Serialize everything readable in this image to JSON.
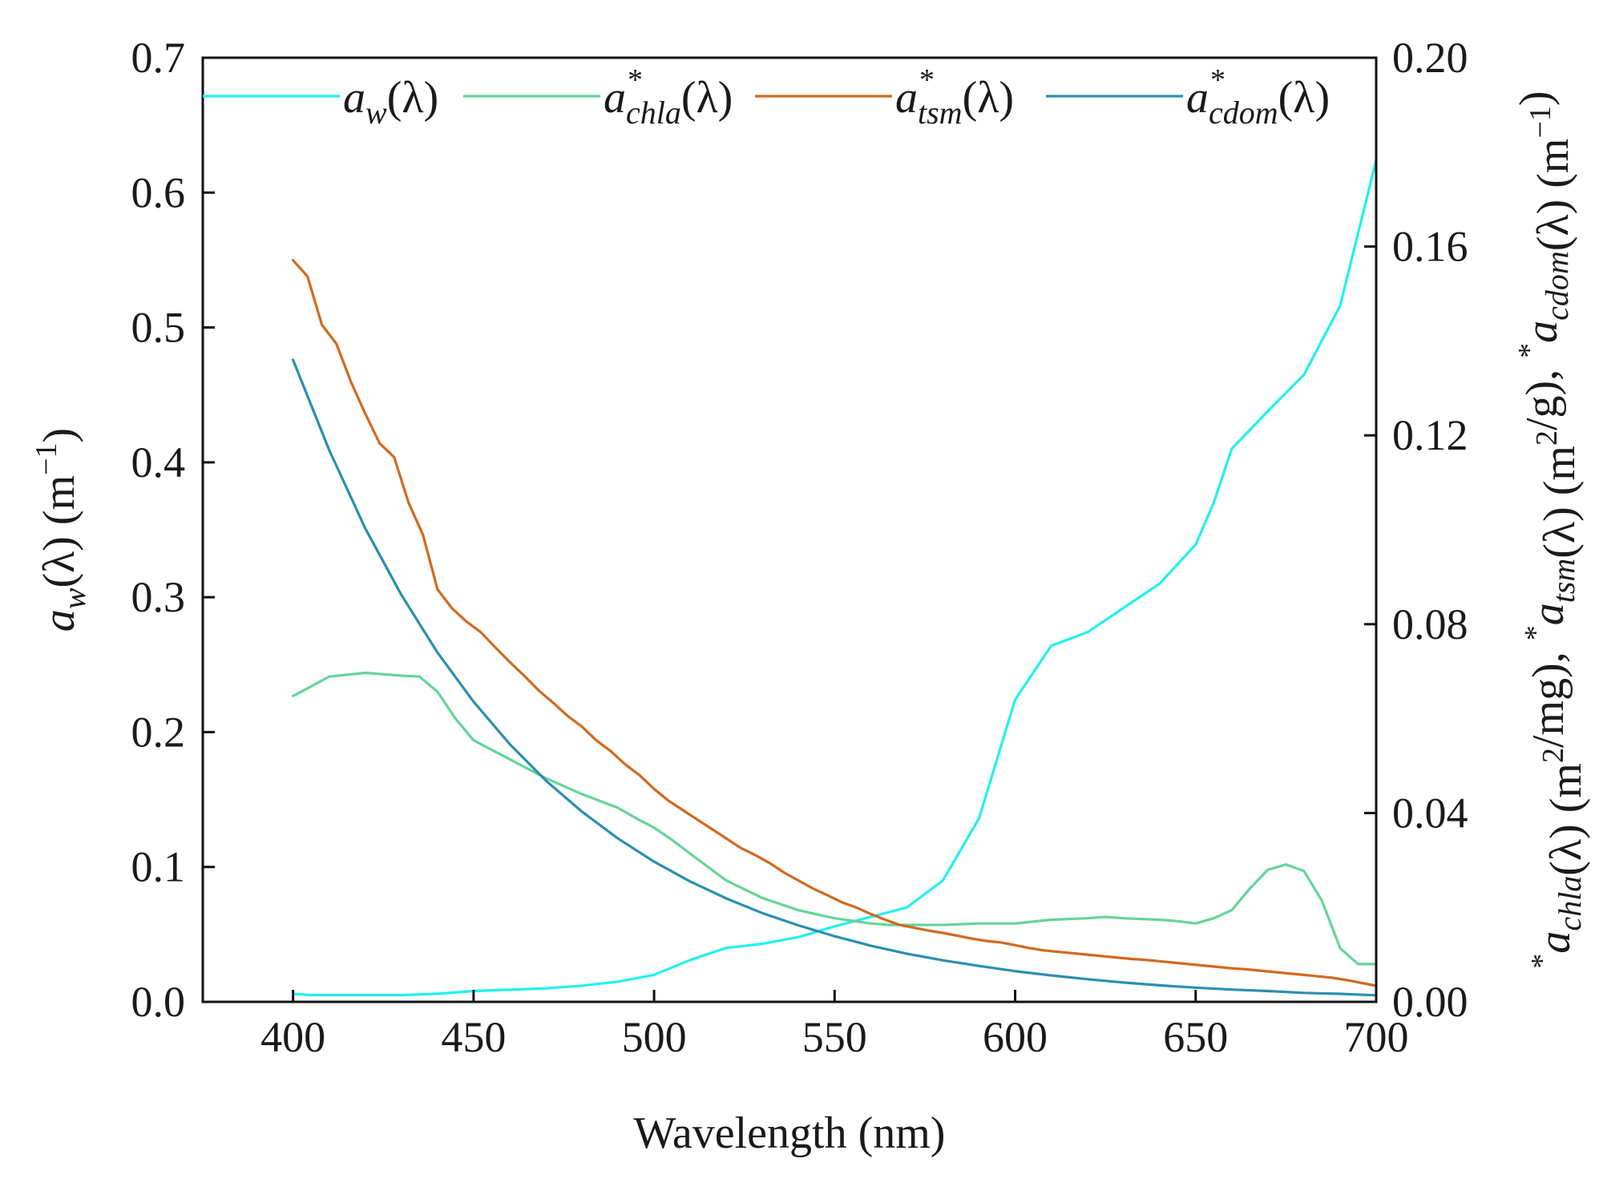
{
  "chart_data": {
    "type": "line",
    "xlabel": "Wavelength (nm)",
    "ylabel_left": {
      "base": "a",
      "sub": "w",
      "rest": "(λ) (m",
      "sup": "−1",
      "end": ")"
    },
    "ylabel_right": [
      {
        "t": "a",
        "sup": "*",
        "sub": "chla"
      },
      {
        "t": "(λ) (m"
      },
      {
        "sup": "2"
      },
      {
        "t": "/mg), "
      },
      {
        "t": "a",
        "sup": "*",
        "sub": "tsm"
      },
      {
        "t": "(λ) (m"
      },
      {
        "sup": "2"
      },
      {
        "t": "/g), "
      },
      {
        "t": "a",
        "sup": "*",
        "sub": "cdom"
      },
      {
        "t": "(λ) (m"
      },
      {
        "sup": "−1"
      },
      {
        "t": ")"
      }
    ],
    "x_range": [
      375,
      700
    ],
    "x_ticks": [
      "400",
      "450",
      "500",
      "550",
      "600",
      "650",
      "700"
    ],
    "y_left_range": [
      0,
      0.7
    ],
    "y_left_ticks": [
      "0.0",
      "0.1",
      "0.2",
      "0.3",
      "0.4",
      "0.5",
      "0.6",
      "0.7"
    ],
    "y_right_range": [
      0,
      0.2
    ],
    "y_right_ticks": [
      "0.00",
      "0.04",
      "0.08",
      "0.12",
      "0.16",
      "0.20"
    ],
    "legend_position": "top",
    "grid": false,
    "series": [
      {
        "id": "aw",
        "label": {
          "base": "a",
          "sub": "w",
          "star": false,
          "rest": "(λ)"
        },
        "axis": "left",
        "color": "#22f0f0",
        "x": [
          400,
          405,
          410,
          420,
          430,
          440,
          445,
          450,
          460,
          470,
          480,
          490,
          500,
          510,
          520,
          530,
          540,
          550,
          560,
          570,
          580,
          590,
          600,
          610,
          620,
          630,
          640,
          650,
          655,
          660,
          670,
          680,
          690,
          700
        ],
        "y": [
          0.006,
          0.005,
          0.005,
          0.005,
          0.005,
          0.006,
          0.007,
          0.008,
          0.009,
          0.01,
          0.012,
          0.015,
          0.02,
          0.031,
          0.04,
          0.043,
          0.048,
          0.056,
          0.063,
          0.07,
          0.09,
          0.136,
          0.224,
          0.264,
          0.274,
          0.292,
          0.31,
          0.339,
          0.37,
          0.41,
          0.438,
          0.465,
          0.516,
          0.624
        ]
      },
      {
        "id": "chla",
        "label": {
          "base": "a",
          "sub": "chla",
          "star": true,
          "rest": "(λ)"
        },
        "axis": "right",
        "color": "#66d49a",
        "x": [
          400,
          403,
          410,
          420,
          430,
          435,
          440,
          445,
          450,
          460,
          470,
          480,
          490,
          495,
          500,
          505,
          510,
          520,
          530,
          540,
          550,
          560,
          565,
          570,
          580,
          590,
          600,
          610,
          620,
          625,
          630,
          640,
          645,
          650,
          655,
          660,
          665,
          670,
          675,
          680,
          685,
          690,
          695,
          700
        ],
        "y": [
          0.0648,
          0.066,
          0.0689,
          0.0697,
          0.0691,
          0.0689,
          0.0657,
          0.06,
          0.0554,
          0.0514,
          0.0474,
          0.044,
          0.0411,
          0.0389,
          0.0369,
          0.0343,
          0.0314,
          0.0257,
          0.022,
          0.0194,
          0.0177,
          0.0166,
          0.0163,
          0.0163,
          0.0163,
          0.0166,
          0.0166,
          0.0174,
          0.0177,
          0.018,
          0.0177,
          0.0174,
          0.0171,
          0.0166,
          0.0177,
          0.0194,
          0.024,
          0.028,
          0.0291,
          0.0277,
          0.0214,
          0.0114,
          0.008,
          0.008
        ]
      },
      {
        "id": "tsm",
        "label": {
          "base": "a",
          "sub": "tsm",
          "star": true,
          "rest": "(λ)"
        },
        "axis": "right",
        "color": "#d2691e",
        "x": [
          400,
          404,
          408,
          412,
          416,
          420,
          424,
          428,
          432,
          436,
          440,
          444,
          448,
          452,
          456,
          460,
          464,
          468,
          472,
          476,
          480,
          484,
          488,
          492,
          496,
          500,
          504,
          508,
          512,
          516,
          520,
          524,
          528,
          532,
          536,
          540,
          544,
          548,
          552,
          556,
          560,
          564,
          568,
          572,
          576,
          580,
          584,
          588,
          592,
          596,
          600,
          604,
          608,
          612,
          616,
          620,
          624,
          628,
          632,
          636,
          640,
          644,
          648,
          652,
          656,
          660,
          664,
          668,
          672,
          676,
          680,
          684,
          688,
          692,
          696,
          700
        ],
        "y": [
          0.1571,
          0.1537,
          0.1434,
          0.1394,
          0.1314,
          0.1246,
          0.1183,
          0.1154,
          0.1057,
          0.0989,
          0.0874,
          0.0834,
          0.0806,
          0.0783,
          0.0751,
          0.072,
          0.0691,
          0.066,
          0.0634,
          0.0606,
          0.0583,
          0.0554,
          0.0531,
          0.0503,
          0.048,
          0.0451,
          0.0426,
          0.0406,
          0.0386,
          0.0366,
          0.0346,
          0.0326,
          0.0311,
          0.0294,
          0.0274,
          0.0257,
          0.024,
          0.0226,
          0.0211,
          0.02,
          0.0186,
          0.0174,
          0.0163,
          0.0157,
          0.0151,
          0.0146,
          0.014,
          0.0134,
          0.0129,
          0.0126,
          0.012,
          0.0114,
          0.0109,
          0.0106,
          0.0103,
          0.01,
          0.0097,
          0.0094,
          0.0091,
          0.0089,
          0.0086,
          0.0083,
          0.008,
          0.0077,
          0.0074,
          0.0071,
          0.0069,
          0.0066,
          0.0063,
          0.006,
          0.0057,
          0.0054,
          0.0051,
          0.0046,
          0.004,
          0.0034
        ]
      },
      {
        "id": "cdom",
        "label": {
          "base": "a",
          "sub": "cdom",
          "star": true,
          "rest": "(λ)"
        },
        "axis": "right",
        "color": "#2a8fb0",
        "x": [
          400,
          410,
          420,
          430,
          440,
          450,
          460,
          470,
          480,
          490,
          500,
          510,
          520,
          530,
          540,
          550,
          560,
          570,
          580,
          590,
          600,
          610,
          620,
          630,
          640,
          650,
          660,
          670,
          680,
          690,
          700
        ],
        "y": [
          0.136,
          0.1169,
          0.1003,
          0.0862,
          0.074,
          0.0636,
          0.0546,
          0.0469,
          0.0403,
          0.0346,
          0.0297,
          0.0255,
          0.0219,
          0.0188,
          0.0162,
          0.0139,
          0.0119,
          0.0102,
          0.0088,
          0.0076,
          0.0065,
          0.0056,
          0.0048,
          0.0041,
          0.0035,
          0.003,
          0.0026,
          0.0023,
          0.0019,
          0.0017,
          0.0014
        ]
      }
    ]
  }
}
